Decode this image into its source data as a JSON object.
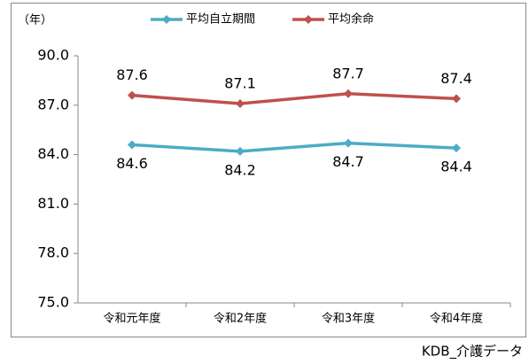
{
  "chart_data": {
    "type": "line",
    "y_label": "（年）",
    "categories": [
      "令和元年度",
      "令和2年度",
      "令和3年度",
      "令和4年度"
    ],
    "series": [
      {
        "name": "平均自立期間",
        "color": "#4bacc6",
        "values": [
          84.6,
          84.2,
          84.7,
          84.4
        ]
      },
      {
        "name": "平均余命",
        "color": "#c0504d",
        "values": [
          87.6,
          87.1,
          87.7,
          87.4
        ]
      }
    ],
    "ylim": [
      75,
      90
    ],
    "yticks": [
      {
        "value": 75,
        "label": "75.0"
      },
      {
        "value": 78,
        "label": "78.0"
      },
      {
        "value": 81,
        "label": "81.0"
      },
      {
        "value": 84,
        "label": "84.0"
      },
      {
        "value": 87,
        "label": "87.0"
      },
      {
        "value": 90,
        "label": "90.0"
      }
    ],
    "grid": false,
    "legend": "top",
    "source": "KDB_介護データ"
  }
}
